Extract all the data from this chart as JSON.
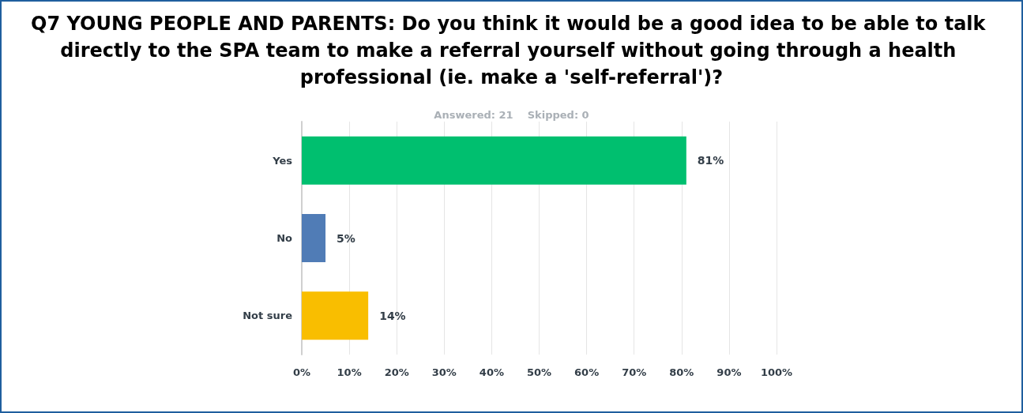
{
  "chart_data": {
    "type": "bar",
    "orientation": "horizontal",
    "title": "Q7 YOUNG PEOPLE AND PARENTS: Do you think it would be a good idea to be able to talk directly to the SPA team to make a referral yourself without going through a health professional (ie. make a 'self-referral')?",
    "subtitle": "Answered: 21    Skipped: 0",
    "categories": [
      "Yes",
      "No",
      "Not sure"
    ],
    "values": [
      81,
      5,
      14
    ],
    "colors": [
      "#00bf6f",
      "#507cb6",
      "#f9be00"
    ],
    "value_labels": [
      "81%",
      "5%",
      "14%"
    ],
    "xlim": [
      0,
      100
    ],
    "xticks": [
      {
        "value": 0,
        "label": "0%"
      },
      {
        "value": 10,
        "label": "10%"
      },
      {
        "value": 20,
        "label": "20%"
      },
      {
        "value": 30,
        "label": "30%"
      },
      {
        "value": 40,
        "label": "40%"
      },
      {
        "value": 50,
        "label": "50%"
      },
      {
        "value": 60,
        "label": "60%"
      },
      {
        "value": 70,
        "label": "70%"
      },
      {
        "value": 80,
        "label": "80%"
      },
      {
        "value": 90,
        "label": "90%"
      },
      {
        "value": 100,
        "label": "100%"
      }
    ],
    "grid": "x"
  }
}
